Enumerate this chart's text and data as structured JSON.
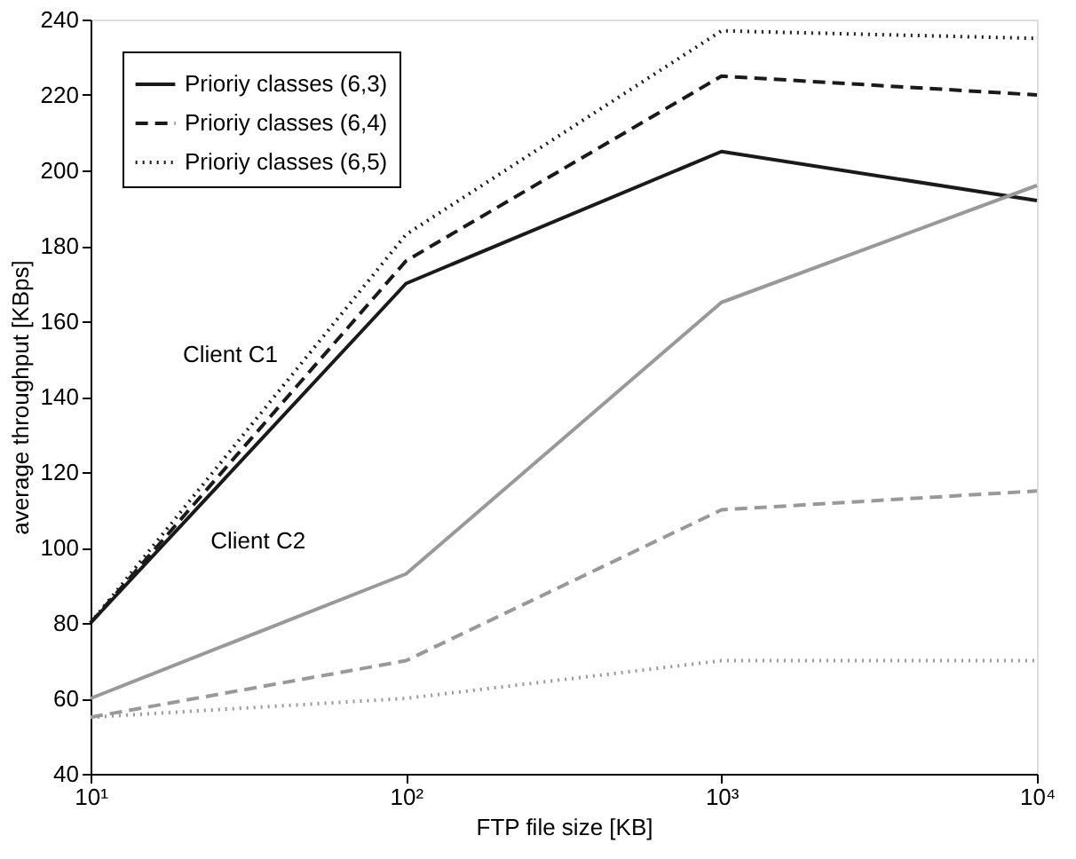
{
  "chart_data": {
    "type": "line",
    "xlabel": "FTP file size [KB]",
    "ylabel": "average throughput [KBps]",
    "log": "x",
    "x": [
      10,
      100,
      1000,
      10000
    ],
    "xlim": [
      10,
      10000
    ],
    "xticks": [
      {
        "value": 10,
        "label": "10¹"
      },
      {
        "value": 100,
        "label": "10²"
      },
      {
        "value": 1000,
        "label": "10³"
      },
      {
        "value": 10000,
        "label": "10⁴"
      }
    ],
    "ylim": [
      40,
      240
    ],
    "yticks": [
      40,
      60,
      80,
      100,
      120,
      140,
      160,
      180,
      200,
      220,
      240
    ],
    "legend": "top left",
    "grid": false,
    "marker": "none",
    "series": [
      {
        "name": "Prioriy classes (6,3)",
        "color": "#1a1a1a",
        "line_style": "solid",
        "values": [
          80,
          170,
          205,
          192
        ]
      },
      {
        "name": "Prioriy classes (6,4)",
        "color": "#1a1a1a",
        "line_style": "dashed",
        "values": [
          80,
          176,
          225,
          220
        ]
      },
      {
        "name": "Prioriy classes (6,5)",
        "color": "#1a1a1a",
        "line_style": "dotted",
        "values": [
          80,
          183,
          237,
          235
        ]
      },
      {
        "color": "#999999",
        "line_style": "solid",
        "values": [
          60,
          93,
          165,
          196
        ]
      },
      {
        "color": "#999999",
        "line_style": "dashed",
        "values": [
          55,
          70,
          110,
          115
        ]
      },
      {
        "color": "#999999",
        "line_style": "dotted",
        "values": [
          55,
          60,
          70,
          70
        ]
      }
    ],
    "annotations": [
      "Client C1",
      "Client C2"
    ]
  }
}
